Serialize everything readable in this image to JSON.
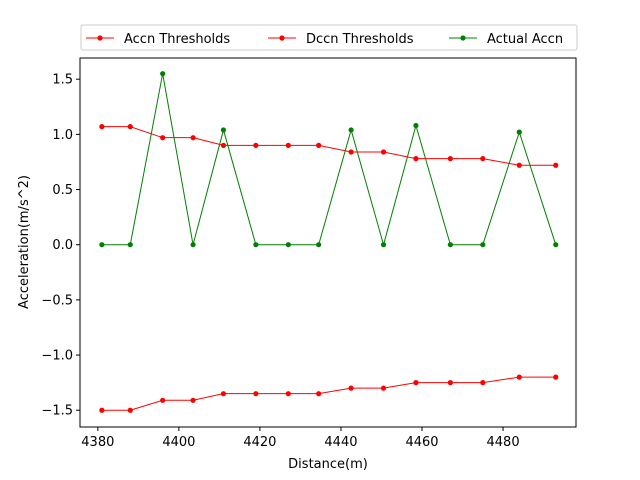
{
  "chart_data": {
    "type": "line",
    "title": "",
    "xlabel": "Distance(m)",
    "ylabel": "Acceleration(m/s^2)",
    "xlim": [
      4375.6,
      4498.0
    ],
    "ylim": [
      -1.652,
      1.692
    ],
    "xticks": [
      4380,
      4400,
      4420,
      4440,
      4460,
      4480
    ],
    "yticks": [
      -1.5,
      -1.0,
      -0.5,
      0.0,
      0.5,
      1.0,
      1.5
    ],
    "xtick_labels": [
      "4380",
      "4400",
      "4420",
      "4440",
      "4460",
      "4480"
    ],
    "ytick_labels": [
      "−1.5",
      "−1.0",
      "−0.5",
      "0.0",
      "0.5",
      "1.0",
      "1.5"
    ],
    "grid": false,
    "legend_position": "top",
    "series": [
      {
        "name": "Accn Thresholds",
        "color": "#ff0000",
        "x": [
          4381,
          4388,
          4396,
          4403.5,
          4411,
          4419,
          4427,
          4434.5,
          4442.5,
          4450.5,
          4458.5,
          4467,
          4475,
          4484,
          4493
        ],
        "y": [
          1.07,
          1.07,
          0.97,
          0.97,
          0.9,
          0.9,
          0.9,
          0.9,
          0.84,
          0.84,
          0.78,
          0.78,
          0.78,
          0.72,
          0.72
        ]
      },
      {
        "name": "Dccn Thresholds",
        "color": "#ff0000",
        "x": [
          4381,
          4388,
          4396,
          4403.5,
          4411,
          4419,
          4427,
          4434.5,
          4442.5,
          4450.5,
          4458.5,
          4467,
          4475,
          4484,
          4493
        ],
        "y": [
          -1.5,
          -1.5,
          -1.41,
          -1.41,
          -1.35,
          -1.35,
          -1.35,
          -1.35,
          -1.3,
          -1.3,
          -1.25,
          -1.25,
          -1.25,
          -1.2,
          -1.2
        ]
      },
      {
        "name": "Actual Accn",
        "color": "#008000",
        "x": [
          4381,
          4388,
          4396,
          4403.5,
          4411,
          4419,
          4427,
          4434.5,
          4442.5,
          4450.5,
          4458.5,
          4467,
          4475,
          4484,
          4493
        ],
        "y": [
          0.0,
          0.0,
          1.55,
          0.0,
          1.04,
          0.0,
          0.0,
          0.0,
          1.04,
          0.0,
          1.08,
          0.0,
          0.0,
          1.02,
          0.0
        ]
      }
    ]
  }
}
